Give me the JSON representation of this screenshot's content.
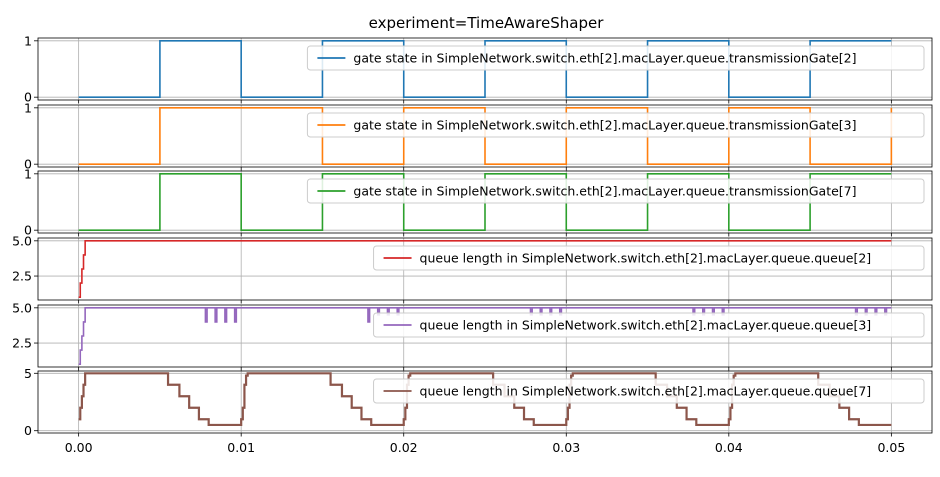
{
  "chart_data": {
    "type": "line",
    "title": "experiment=TimeAwareShaper",
    "x_ticks": [
      "0.00",
      "0.01",
      "0.02",
      "0.03",
      "0.04",
      "0.05"
    ],
    "x_tick_values": [
      0,
      0.01,
      0.02,
      0.03,
      0.04,
      0.05
    ],
    "xlim": [
      -0.0025,
      0.0525
    ],
    "grid": true,
    "legend_placement": "upper-right",
    "panels": [
      {
        "name": "gate state in SimpleNetwork.switch.eth[2].macLayer.queue.transmissionGate[2]",
        "color": "#1f77b4",
        "ylim": [
          -0.05,
          1.05
        ],
        "y_ticks": [
          0,
          1
        ],
        "y_tick_labels": [
          "0",
          "1"
        ],
        "x": [
          0,
          0.005,
          0.005,
          0.01,
          0.01,
          0.015,
          0.015,
          0.02,
          0.02,
          0.025,
          0.025,
          0.03,
          0.03,
          0.035,
          0.035,
          0.04,
          0.04,
          0.045,
          0.045,
          0.05
        ],
        "y": [
          0,
          0,
          1,
          1,
          0,
          0,
          1,
          1,
          0,
          0,
          1,
          1,
          0,
          0,
          1,
          1,
          0,
          0,
          1,
          1
        ]
      },
      {
        "name": "gate state in SimpleNetwork.switch.eth[2].macLayer.queue.transmissionGate[3]",
        "color": "#ff7f0e",
        "ylim": [
          -0.05,
          1.05
        ],
        "y_ticks": [
          0,
          1
        ],
        "y_tick_labels": [
          "0",
          "1"
        ],
        "x": [
          0,
          0.005,
          0.005,
          0.015,
          0.015,
          0.02,
          0.02,
          0.025,
          0.025,
          0.03,
          0.03,
          0.035,
          0.035,
          0.04,
          0.04,
          0.045,
          0.045,
          0.05,
          0.05
        ],
        "y": [
          0,
          0,
          1,
          1,
          0,
          0,
          1,
          1,
          0,
          0,
          1,
          1,
          0,
          0,
          1,
          1,
          0,
          0,
          1
        ]
      },
      {
        "name": "gate state in SimpleNetwork.switch.eth[2].macLayer.queue.transmissionGate[7]",
        "color": "#2ca02c",
        "ylim": [
          -0.05,
          1.05
        ],
        "y_ticks": [
          0,
          1
        ],
        "y_tick_labels": [
          "0",
          "1"
        ],
        "x": [
          0,
          0.005,
          0.005,
          0.01,
          0.01,
          0.015,
          0.015,
          0.02,
          0.02,
          0.025,
          0.025,
          0.03,
          0.03,
          0.035,
          0.035,
          0.04,
          0.04,
          0.045,
          0.045,
          0.05
        ],
        "y": [
          0,
          0,
          1,
          1,
          0,
          0,
          1,
          1,
          0,
          0,
          1,
          1,
          0,
          0,
          1,
          1,
          0,
          0,
          1,
          1
        ]
      },
      {
        "name": "queue length in SimpleNetwork.switch.eth[2].macLayer.queue.queue[2]",
        "color": "#d62728",
        "ylim": [
          0.8,
          5.2
        ],
        "y_ticks": [
          2.5,
          5.0
        ],
        "y_tick_labels": [
          "2.5",
          "5.0"
        ],
        "x": [
          0,
          0,
          0.0001,
          0.0001,
          0.0002,
          0.0002,
          0.0003,
          0.0003,
          0.0004,
          0.0004,
          0.05
        ],
        "y": [
          1,
          1,
          1,
          2,
          2,
          3,
          3,
          4,
          4,
          5,
          5
        ]
      },
      {
        "name": "queue length in SimpleNetwork.switch.eth[2].macLayer.queue.queue[3]",
        "color": "#9467bd",
        "ylim": [
          0.8,
          5.2
        ],
        "y_ticks": [
          2.5,
          5.0
        ],
        "y_tick_labels": [
          "2.5",
          "5.0"
        ],
        "x": [
          0,
          0,
          0.0001,
          0.0001,
          0.0002,
          0.0002,
          0.0003,
          0.0003,
          0.0004,
          0.0004,
          0.0078,
          0.0078,
          0.0079,
          0.0079,
          0.0084,
          0.0084,
          0.0085,
          0.0085,
          0.009,
          0.009,
          0.0091,
          0.0091,
          0.0096,
          0.0096,
          0.0097,
          0.0097,
          0.0178,
          0.0178,
          0.0179,
          0.0179,
          0.0184,
          0.0184,
          0.0185,
          0.0185,
          0.019,
          0.019,
          0.0191,
          0.0191,
          0.0196,
          0.0196,
          0.0197,
          0.0197,
          0.0278,
          0.0278,
          0.0279,
          0.0279,
          0.0284,
          0.0284,
          0.0285,
          0.0285,
          0.029,
          0.029,
          0.0291,
          0.0291,
          0.0296,
          0.0296,
          0.0297,
          0.0297,
          0.0378,
          0.0378,
          0.0379,
          0.0379,
          0.0384,
          0.0384,
          0.0385,
          0.0385,
          0.039,
          0.039,
          0.0391,
          0.0391,
          0.0396,
          0.0396,
          0.0397,
          0.0397,
          0.0478,
          0.0478,
          0.0479,
          0.0479,
          0.0484,
          0.0484,
          0.0485,
          0.0485,
          0.049,
          0.049,
          0.0491,
          0.0491,
          0.0496,
          0.0496,
          0.0497,
          0.0497,
          0.05
        ],
        "y": [
          1,
          1,
          1,
          2,
          2,
          3,
          3,
          4,
          4,
          5,
          5,
          4,
          4,
          5,
          5,
          4,
          4,
          5,
          5,
          4,
          4,
          5,
          5,
          4,
          4,
          5,
          5,
          4,
          4,
          5,
          5,
          4.5,
          4.5,
          5,
          5,
          4.5,
          4.5,
          5,
          5,
          4.5,
          4.5,
          5,
          5,
          4.5,
          4.5,
          5,
          5,
          4.5,
          4.5,
          5,
          5,
          4.5,
          4.5,
          5,
          5,
          4.5,
          4.5,
          5,
          5,
          4.5,
          4.5,
          5,
          5,
          4.5,
          4.5,
          5,
          5,
          4.5,
          4.5,
          5,
          5,
          4.5,
          4.5,
          5,
          5,
          4.5,
          4.5,
          5,
          5,
          4.5,
          4.5,
          5,
          5,
          4.5,
          4.5,
          5,
          5,
          4.5,
          4.5,
          5,
          5
        ]
      },
      {
        "name": "queue length in SimpleNetwork.switch.eth[2].macLayer.queue.queue[7]",
        "color": "#8c564b",
        "ylim": [
          -0.2,
          5.2
        ],
        "y_ticks": [
          0,
          5
        ],
        "y_tick_labels": [
          "0",
          "5"
        ],
        "x": [
          0,
          0.0001,
          0.0001,
          0.0002,
          0.0002,
          0.0003,
          0.0003,
          0.0004,
          0.0004,
          0.0055,
          0.0055,
          0.0062,
          0.0062,
          0.0068,
          0.0068,
          0.0074,
          0.0074,
          0.008,
          0.008,
          0.01,
          0.01,
          0.0101,
          0.0101,
          0.0102,
          0.0102,
          0.0103,
          0.0103,
          0.0104,
          0.0104,
          0.0155,
          0.0155,
          0.0162,
          0.0162,
          0.0168,
          0.0168,
          0.0174,
          0.0174,
          0.018,
          0.018,
          0.02,
          0.02,
          0.0201,
          0.0201,
          0.0202,
          0.0202,
          0.0203,
          0.0203,
          0.0204,
          0.0204,
          0.0255,
          0.0255,
          0.0262,
          0.0262,
          0.0268,
          0.0268,
          0.0274,
          0.0274,
          0.028,
          0.028,
          0.03,
          0.03,
          0.0301,
          0.0301,
          0.0302,
          0.0302,
          0.0303,
          0.0303,
          0.0304,
          0.0304,
          0.0355,
          0.0355,
          0.0362,
          0.0362,
          0.0368,
          0.0368,
          0.0374,
          0.0374,
          0.038,
          0.038,
          0.04,
          0.04,
          0.0401,
          0.0401,
          0.0402,
          0.0402,
          0.0403,
          0.0403,
          0.0404,
          0.0404,
          0.0455,
          0.0455,
          0.0462,
          0.0462,
          0.0468,
          0.0468,
          0.0474,
          0.0474,
          0.048,
          0.048,
          0.05
        ],
        "y": [
          1,
          1,
          2,
          2,
          3,
          3,
          4,
          4,
          5,
          5,
          4,
          4,
          3,
          3,
          2,
          2,
          1,
          1,
          0.5,
          0.5,
          1,
          1,
          2,
          2,
          4,
          4,
          4.8,
          4.8,
          5,
          5,
          4,
          4,
          3,
          3,
          2,
          2,
          1,
          1,
          0.5,
          0.5,
          1,
          1,
          2,
          2,
          4,
          4,
          4.8,
          4.8,
          5,
          5,
          4,
          4,
          3,
          3,
          2,
          2,
          1,
          1,
          0.5,
          0.5,
          1,
          1,
          2,
          2,
          4,
          4,
          4.8,
          4.8,
          5,
          5,
          4,
          4,
          3,
          3,
          2,
          2,
          1,
          1,
          0.5,
          0.5,
          1,
          1,
          2,
          2,
          4,
          4,
          4.8,
          4.8,
          5,
          5,
          4,
          4,
          3,
          3,
          2,
          2,
          1,
          1,
          0.5,
          0.5
        ]
      }
    ]
  }
}
